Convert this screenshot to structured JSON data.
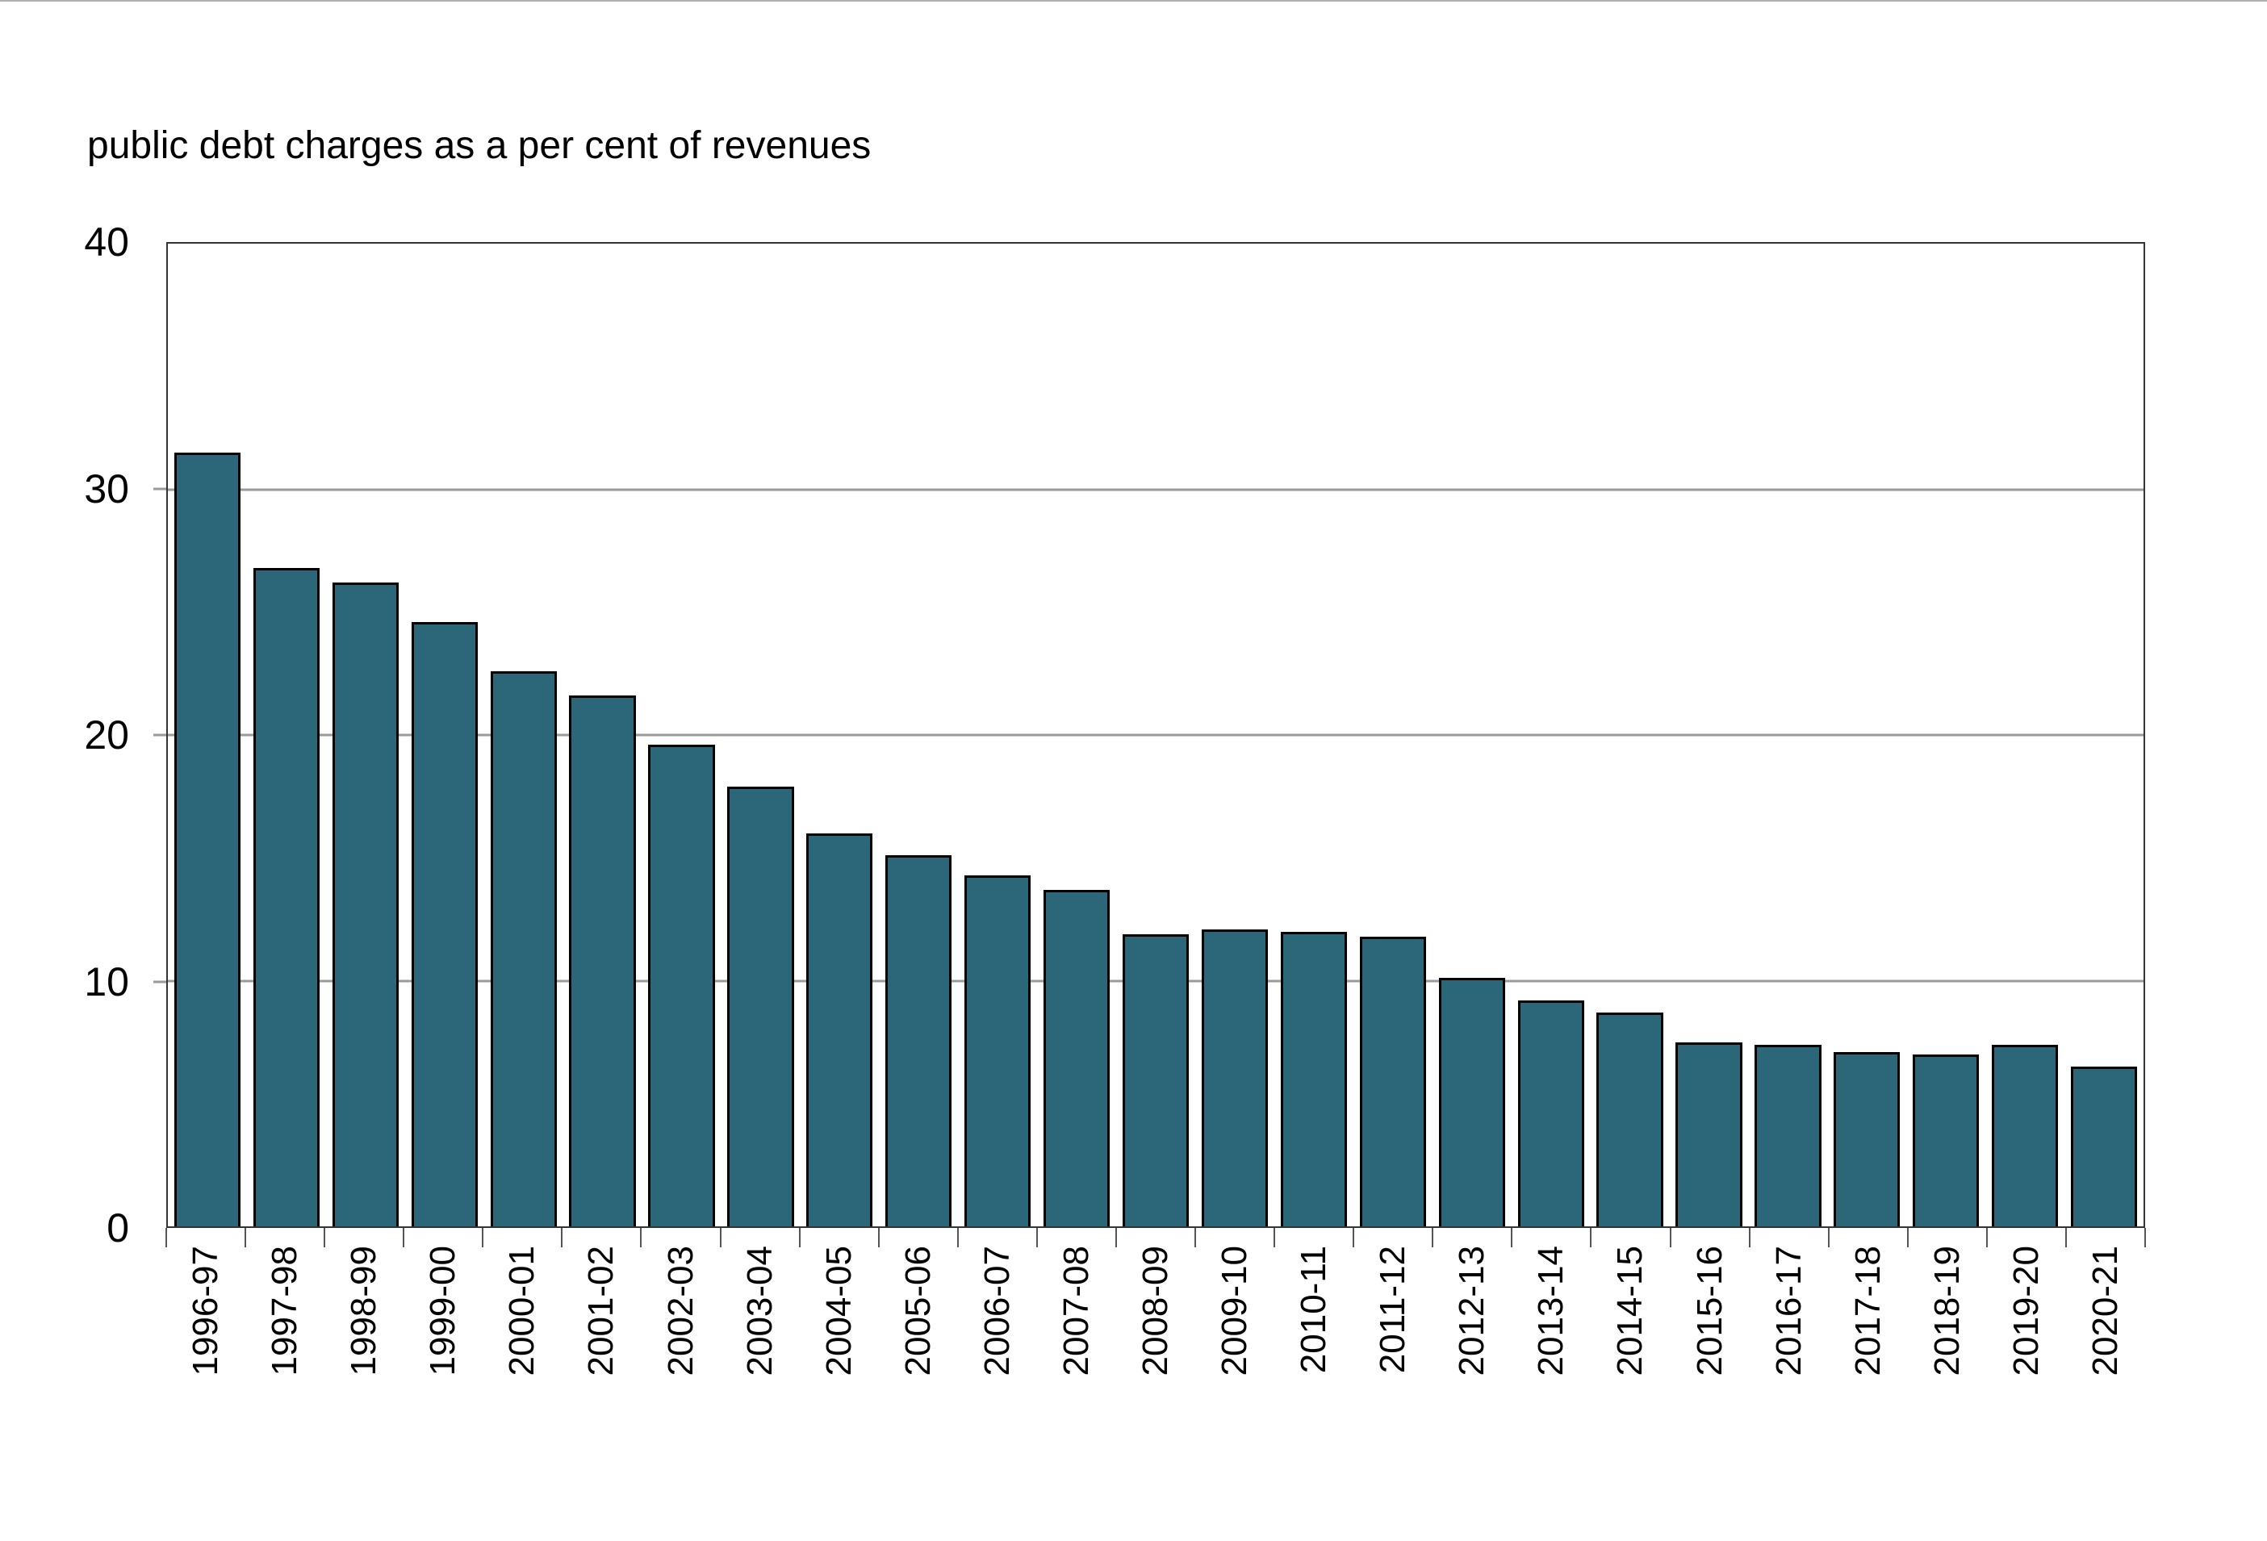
{
  "page": {
    "background": "#ffffff",
    "top_border_color": "#b0b0b0"
  },
  "chart_data": {
    "type": "bar",
    "title": "public debt charges as a per cent of revenues",
    "categories": [
      "1996-97",
      "1997-98",
      "1998-99",
      "1999-00",
      "2000-01",
      "2001-02",
      "2002-03",
      "2003-04",
      "2004-05",
      "2005-06",
      "2006-07",
      "2007-08",
      "2008-09",
      "2009-10",
      "2010-11",
      "2011-12",
      "2012-13",
      "2013-14",
      "2014-15",
      "2015-16",
      "2016-17",
      "2017-18",
      "2018-19",
      "2019-20",
      "2020-21"
    ],
    "values": [
      31.5,
      26.8,
      26.2,
      24.6,
      22.6,
      21.6,
      19.6,
      17.9,
      16.0,
      15.1,
      14.3,
      13.7,
      11.9,
      12.1,
      12.0,
      11.8,
      10.1,
      9.2,
      8.7,
      7.5,
      7.4,
      7.1,
      7.0,
      7.4,
      6.5
    ],
    "xlabel": "",
    "ylabel": "",
    "ylim": [
      0,
      40
    ],
    "yticks": [
      0,
      10,
      20,
      30,
      40
    ],
    "gridlines_at": [
      10,
      20,
      30
    ],
    "grid": "horizontal",
    "legend": "none",
    "bar_color": "#2b6778",
    "bar_border_color": "#000000",
    "gridline_color": "#9a9a9a",
    "axis_color": "#333333",
    "text_color": "#000000"
  }
}
